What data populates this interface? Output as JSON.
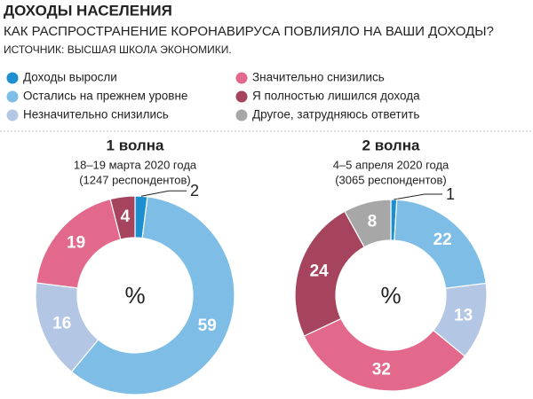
{
  "header": {
    "title": "ДОХОДЫ НАСЕЛЕНИЯ",
    "subtitle": "КАК РАСПРОСТРАНЕНИЕ КОРОНАВИРУСА ПОВЛИЯЛО НА ВАШИ ДОХОДЫ?",
    "source": "ИСТОЧНИК: ВЫСШАЯ ШКОЛА ЭКОНОМИКИ."
  },
  "legend": {
    "categories": [
      "Доходы выросли",
      "Остались на прежнем уровне",
      "Незначительно снизились",
      "Значительно снизились",
      "Я полностью лишился дохода",
      "Другое, затрудняюсь ответить"
    ],
    "colors": [
      "#1b8fd0",
      "#7dbde6",
      "#b3c6e4",
      "#e2698b",
      "#a6445e",
      "#a7a7a7"
    ]
  },
  "chart_data": [
    {
      "type": "pie",
      "title": "1 волна",
      "subtitle": [
        "18–19 марта 2020 года",
        "(1247 респондентов)"
      ],
      "center_label": "%",
      "values": [
        2,
        59,
        16,
        19,
        4,
        null
      ]
    },
    {
      "type": "pie",
      "title": "2 волна",
      "subtitle": [
        "4–5 апреля 2020 года",
        "(3065 респондентов)"
      ],
      "center_label": "%",
      "values": [
        1,
        22,
        13,
        32,
        24,
        8
      ]
    }
  ]
}
